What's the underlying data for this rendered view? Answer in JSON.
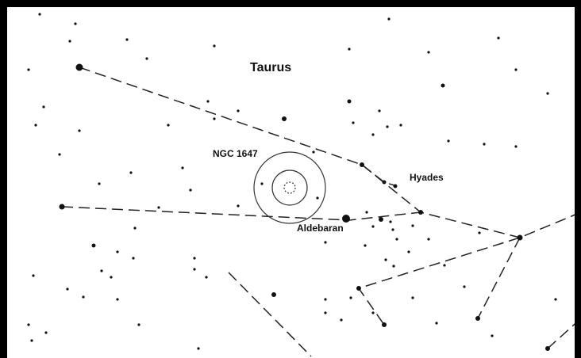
{
  "map": {
    "constellation": "Taurus",
    "labels": [
      "NGC 1647",
      "Hyades",
      "Aldebaran"
    ]
  }
}
